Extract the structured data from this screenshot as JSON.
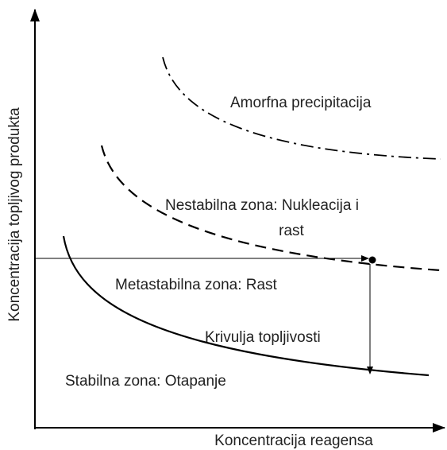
{
  "axes": {
    "y_label": "Koncentracija topljivog produkta",
    "x_label": "Koncentracija reagensa"
  },
  "zones": {
    "amorphous": "Amorfna precipitacija",
    "unstable": [
      "Nestabilna zona: Nukleacija i",
      "rast"
    ],
    "metastable": "Metastabilna zona: Rast",
    "solubility_curve": "Krivulja topljivosti",
    "stable": "Stabilna zona: Otapanje"
  }
}
